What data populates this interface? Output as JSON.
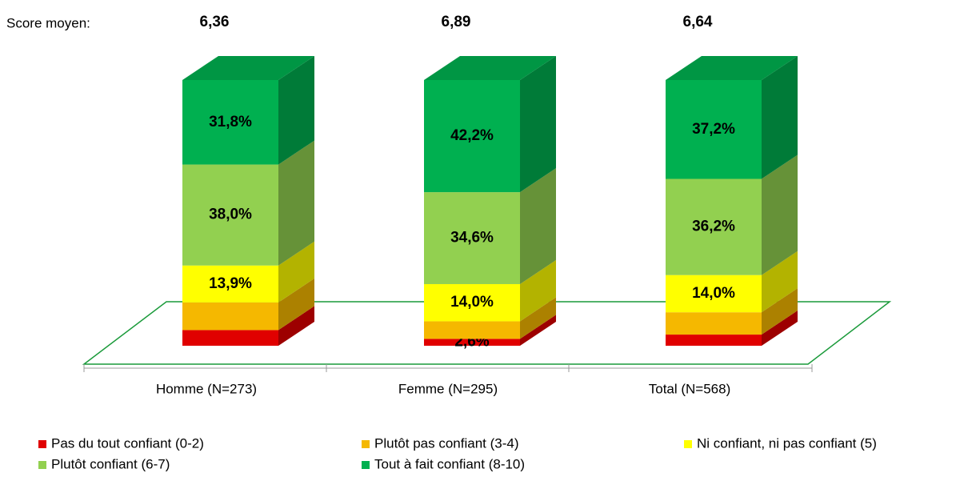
{
  "chart_data": {
    "type": "bar3d_stacked",
    "score_title": "Score moyen:",
    "scores": [
      "6,36",
      "6,89",
      "6,64"
    ],
    "categories": [
      "Homme (N=273)",
      "Femme (N=295)",
      "Total (N=568)"
    ],
    "ylim": [
      0,
      100
    ],
    "series": [
      {
        "name": "Pas du tout confiant (0-2)",
        "color": "#e00000",
        "values": [
          5.9,
          2.6,
          4.2
        ],
        "value_labels": [
          null,
          "2,6%",
          null
        ]
      },
      {
        "name": "Plutôt pas confiant (3-4)",
        "color": "#f5b800",
        "values": [
          10.4,
          6.6,
          8.4
        ],
        "value_labels": [
          null,
          null,
          null
        ]
      },
      {
        "name": "Ni confiant, ni pas confiant (5)",
        "color": "#ffff00",
        "values": [
          13.9,
          14.0,
          14.0
        ],
        "value_labels": [
          "13,9%",
          "14,0%",
          "14,0%"
        ]
      },
      {
        "name": "Plutôt confiant (6-7)",
        "color": "#92d050",
        "values": [
          38.0,
          34.6,
          36.2
        ],
        "value_labels": [
          "38,0%",
          "34,6%",
          "36,2%"
        ]
      },
      {
        "name": "Tout à fait confiant (8-10)",
        "color": "#00b050",
        "values": [
          31.8,
          42.2,
          37.2
        ],
        "value_labels": [
          "31,8%",
          "42,2%",
          "37,2%"
        ]
      }
    ]
  }
}
